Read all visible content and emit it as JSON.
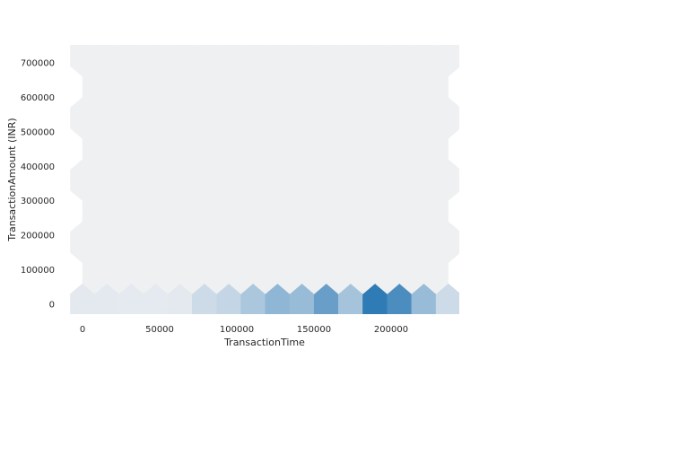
{
  "chart_data": {
    "type": "heatmap",
    "subtype": "hexbin",
    "title": "",
    "xlabel": "TransactionTime",
    "ylabel": "TransactionAmount (INR)",
    "xlim": [
      -5000,
      240000
    ],
    "ylim": [
      -45000,
      760000
    ],
    "xticks": [
      0,
      50000,
      100000,
      150000,
      200000
    ],
    "xtick_labels": [
      "0",
      "50000",
      "100000",
      "150000",
      "200000"
    ],
    "yticks": [
      0,
      100000,
      200000,
      300000,
      400000,
      500000,
      600000,
      700000
    ],
    "ytick_labels": [
      "0",
      "100000",
      "200000",
      "300000",
      "400000",
      "500000",
      "600000",
      "700000"
    ],
    "colormap": {
      "low": "#eef0f2",
      "high": "#2f7bb6"
    },
    "x_centers": [
      0,
      15800,
      31600,
      47400,
      63200,
      79000,
      94800,
      110600,
      126400,
      142200,
      158000,
      173800,
      189600,
      205400,
      221200,
      237000
    ],
    "y_centers": [
      0,
      90000,
      180000,
      270000,
      360000,
      450000,
      540000,
      630000,
      720000
    ],
    "bottom_row_intensity": [
      0.06,
      0.06,
      0.05,
      0.05,
      0.06,
      0.18,
      0.22,
      0.35,
      0.5,
      0.45,
      0.7,
      0.38,
      1.0,
      0.85,
      0.45,
      0.18
    ],
    "upper_rows_intensity": 0.0,
    "grid": false
  }
}
